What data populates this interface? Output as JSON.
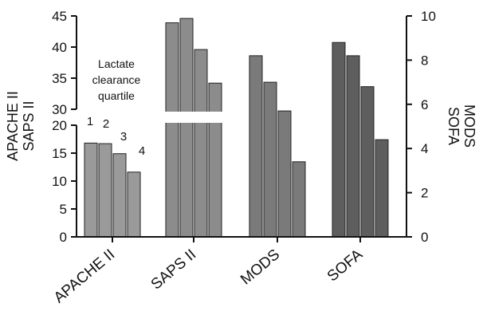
{
  "chart_data": {
    "type": "bar",
    "title": "",
    "categories": [
      "APACHE II",
      "SAPS II",
      "MODS",
      "SOFA"
    ],
    "series_labels": [
      "1",
      "2",
      "3",
      "4"
    ],
    "legend_title": "Lactate clearance quartile",
    "left_axis": {
      "label": "APACHE II\nSAPS II",
      "lower_segment": {
        "ticks": [
          0,
          5,
          10,
          15,
          20
        ],
        "range": [
          0,
          20
        ]
      },
      "upper_segment": {
        "ticks": [
          30,
          35,
          40,
          45
        ],
        "range": [
          30,
          45
        ]
      },
      "axis_break_between": [
        20,
        30
      ]
    },
    "right_axis": {
      "label": "MODS\nSOFA",
      "ticks": [
        0,
        2,
        4,
        6,
        8,
        10
      ],
      "range": [
        0,
        10
      ]
    },
    "groups": [
      {
        "category": "APACHE II",
        "axis": "left",
        "values": [
          16.8,
          16.7,
          14.9,
          11.6
        ]
      },
      {
        "category": "SAPS II",
        "axis": "left",
        "values": [
          43.9,
          44.6,
          39.6,
          34.2
        ]
      },
      {
        "category": "MODS",
        "axis": "right",
        "values": [
          8.2,
          7.0,
          5.7,
          3.4
        ]
      },
      {
        "category": "SOFA",
        "axis": "right",
        "values": [
          8.8,
          8.2,
          6.8,
          4.4
        ]
      }
    ],
    "colors": {
      "APACHE II": "#9a9a9a",
      "SAPS II": "#8c8c8c",
      "MODS": "#7a7a7a",
      "SOFA": "#5e5e5e"
    }
  }
}
